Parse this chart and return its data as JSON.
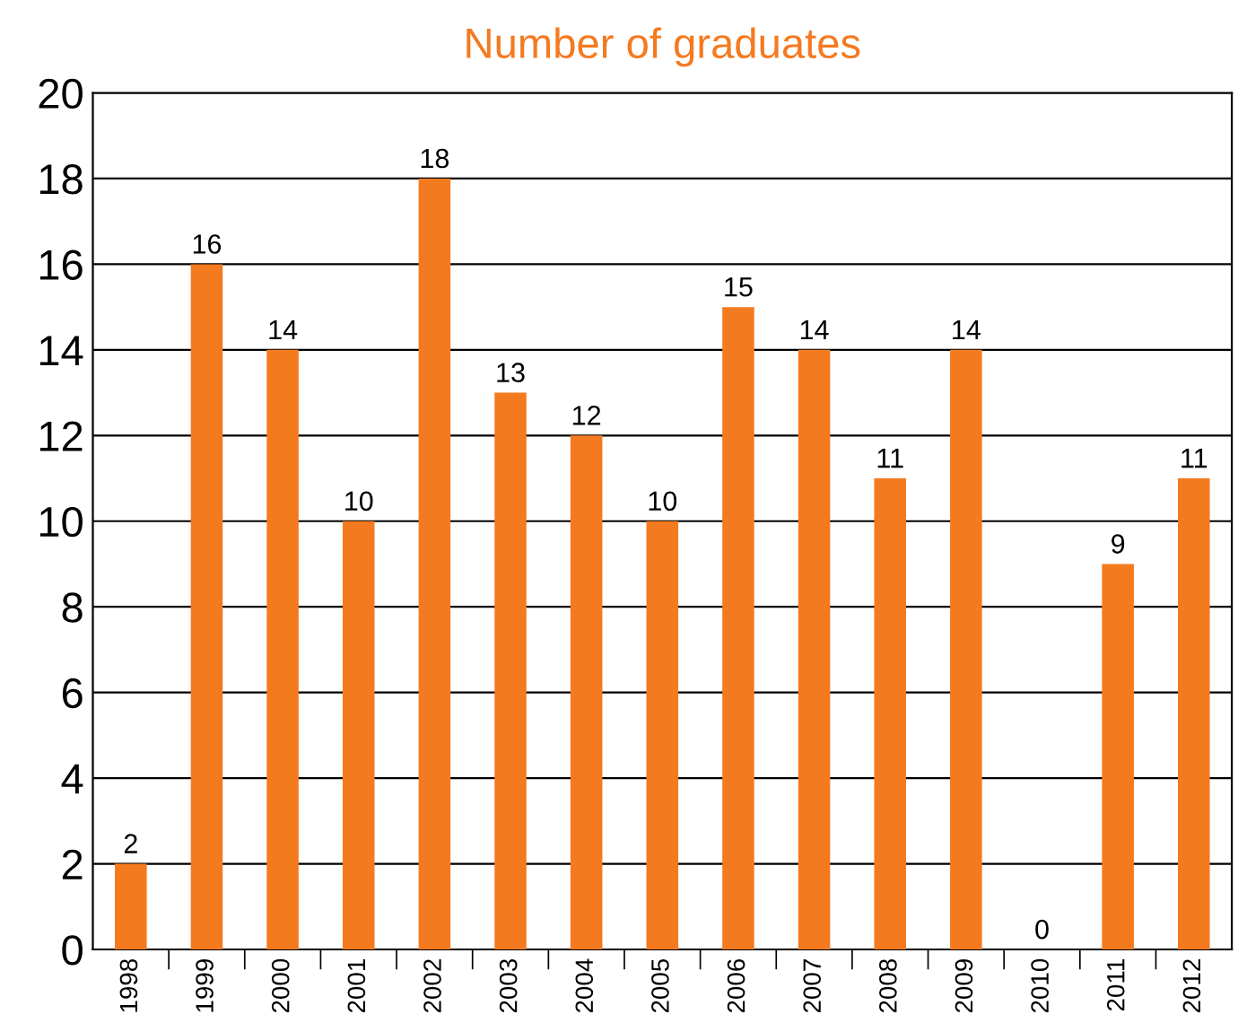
{
  "chart_data": {
    "type": "bar",
    "title": "Number of graduates",
    "categories": [
      "1998",
      "1999",
      "2000",
      "2001",
      "2002",
      "2003",
      "2004",
      "2005",
      "2006",
      "2007",
      "2008",
      "2009",
      "2010",
      "2011",
      "2012"
    ],
    "values": [
      2,
      16,
      14,
      10,
      18,
      13,
      12,
      10,
      15,
      14,
      11,
      14,
      0,
      9,
      11
    ],
    "color": "#f47a20",
    "ylim": [
      0,
      20
    ],
    "yticks": [
      0,
      2,
      4,
      6,
      8,
      10,
      12,
      14,
      16,
      18,
      20
    ],
    "grid": "y",
    "data_labels": true
  }
}
